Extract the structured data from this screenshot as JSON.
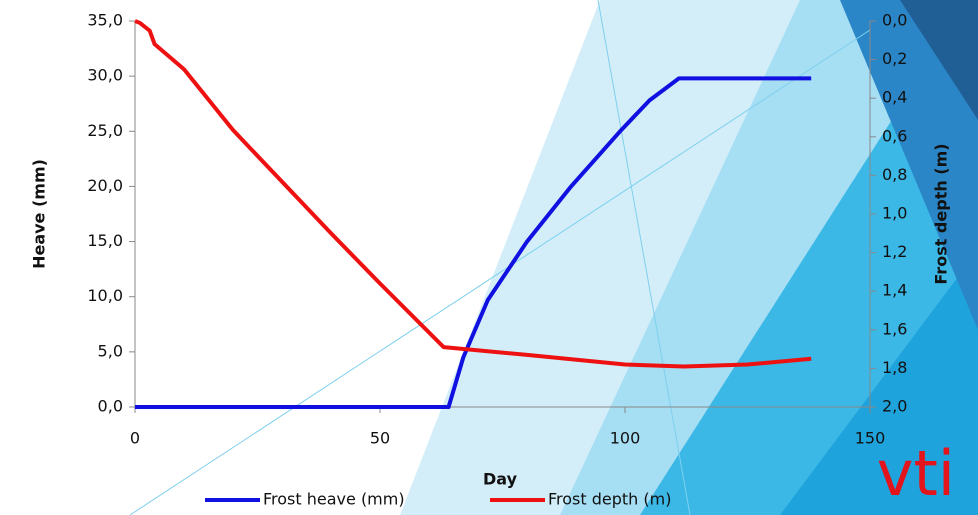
{
  "chart_data": {
    "type": "line",
    "x_label": "Day",
    "y_label": "Heave (mm)",
    "y2_label": "Frost depth (m)",
    "xlim": [
      0,
      150
    ],
    "xticks": [
      0,
      50,
      100,
      150
    ],
    "ylim": [
      0,
      35
    ],
    "yticks": [
      {
        "value": 0,
        "label": "0,0"
      },
      {
        "value": 5,
        "label": "5,0"
      },
      {
        "value": 10,
        "label": "10,0"
      },
      {
        "value": 15,
        "label": "15,0"
      },
      {
        "value": 20,
        "label": "20,0"
      },
      {
        "value": 25,
        "label": "25,0"
      },
      {
        "value": 30,
        "label": "30,0"
      },
      {
        "value": 35,
        "label": "35,0"
      }
    ],
    "y2lim": [
      2,
      0
    ],
    "y2ticks": [
      {
        "value": 0,
        "label": "0,0"
      },
      {
        "value": 0.2,
        "label": "0,2"
      },
      {
        "value": 0.4,
        "label": "0,4"
      },
      {
        "value": 0.6,
        "label": "0,6"
      },
      {
        "value": 0.8,
        "label": "0,8"
      },
      {
        "value": 1,
        "label": "1,0"
      },
      {
        "value": 1.2,
        "label": "1,2"
      },
      {
        "value": 1.4,
        "label": "1,4"
      },
      {
        "value": 1.6,
        "label": "1,6"
      },
      {
        "value": 1.8,
        "label": "1,8"
      },
      {
        "value": 2,
        "label": "2,0"
      }
    ],
    "legend": "bottom",
    "series": [
      {
        "name": "Frost heave (mm)",
        "color": "#1010e0",
        "x": [
          0,
          64,
          67,
          72,
          80,
          89,
          99,
          105,
          111,
          138
        ],
        "values": [
          0,
          0,
          4.5,
          9.7,
          15,
          20,
          25,
          27.8,
          29.8,
          29.8
        ]
      },
      {
        "name": "Frost depth (m)",
        "color": "#ee1111",
        "axis": "y2",
        "x": [
          0,
          1,
          3,
          4,
          10,
          20,
          40,
          50,
          63,
          80,
          100,
          112,
          125,
          138
        ],
        "values": [
          0,
          0.01,
          0.05,
          0.12,
          0.25,
          0.565,
          1.1,
          1.36,
          1.69,
          1.73,
          1.78,
          1.79,
          1.78,
          1.75
        ]
      }
    ]
  },
  "logo": "vti"
}
